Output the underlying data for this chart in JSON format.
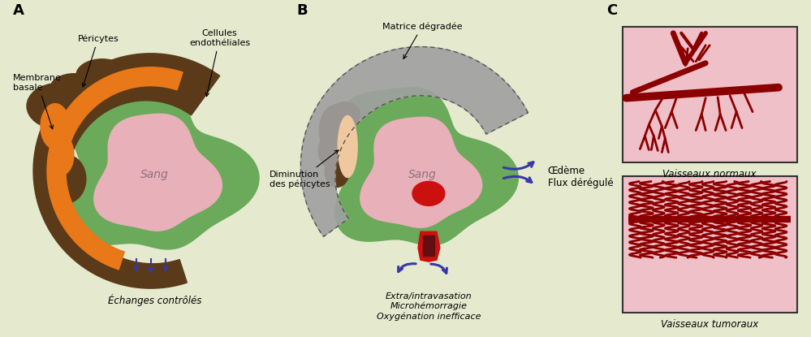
{
  "bg_color": "#e5eacf",
  "panel_a_label": "A",
  "panel_b_label": "B",
  "panel_c_label": "C",
  "label_pericytes": "Péricytes",
  "label_membrane": "Membrane\nbasale",
  "label_cellules": "Cellules\nendothéliales",
  "label_sang_a": "Sang",
  "label_echanges": "Échanges contrôlés",
  "label_matrice": "Matrice dégradée",
  "label_sang_b": "Sang",
  "label_diminution": "Diminution\ndes péricytes",
  "label_oedeme": "Œdème\nFlux dérégulé",
  "label_extra": "Extra/intravasation\nMicrohémorragie\nOxygénation inefficace",
  "label_normaux": "Vaisseaux normaux",
  "label_tumoraux": "Vaisseaux tumoraux",
  "green_vessel": "#6aaa5a",
  "green_dark": "#4e8a3e",
  "brown_pericyte": "#5a3a18",
  "orange_membrane": "#e87818",
  "pink_blood": "#e8b0b8",
  "gray_matrix": "#a0a0a0",
  "peach_membrane_b": "#f0c8a0",
  "red_blood": "#cc1010",
  "blue_arrow": "#3838a8",
  "dark_red": "#8b0000",
  "box_bg": "#f0c0c8",
  "text_color": "#333333"
}
